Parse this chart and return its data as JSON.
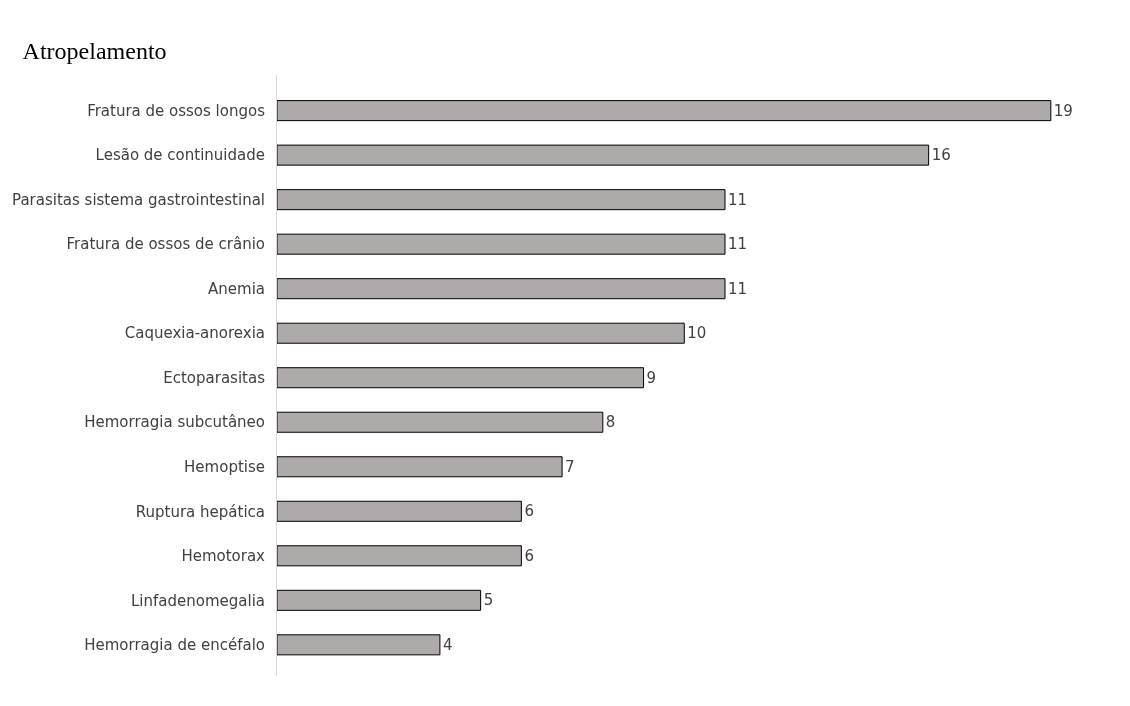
{
  "chart_data": {
    "type": "bar",
    "orientation": "horizontal",
    "title": "Atropelamento",
    "categories": [
      "Fratura de ossos longos",
      "Lesão de continuidade",
      "Parasitas sistema gastrointestinal",
      "Fratura de ossos de crânio",
      "Anemia",
      "Caquexia-anorexia",
      "Ectoparasitas",
      "Hemorragia subcutâneo",
      "Hemoptise",
      "Ruptura hepática",
      "Hemotorax",
      "Linfadenomegalia",
      "Hemorragia de encéfalo"
    ],
    "values": [
      19,
      16,
      11,
      11,
      11,
      10,
      9,
      8,
      7,
      6,
      6,
      5,
      4
    ],
    "color": "#aeaaaa",
    "data_labels": true
  }
}
